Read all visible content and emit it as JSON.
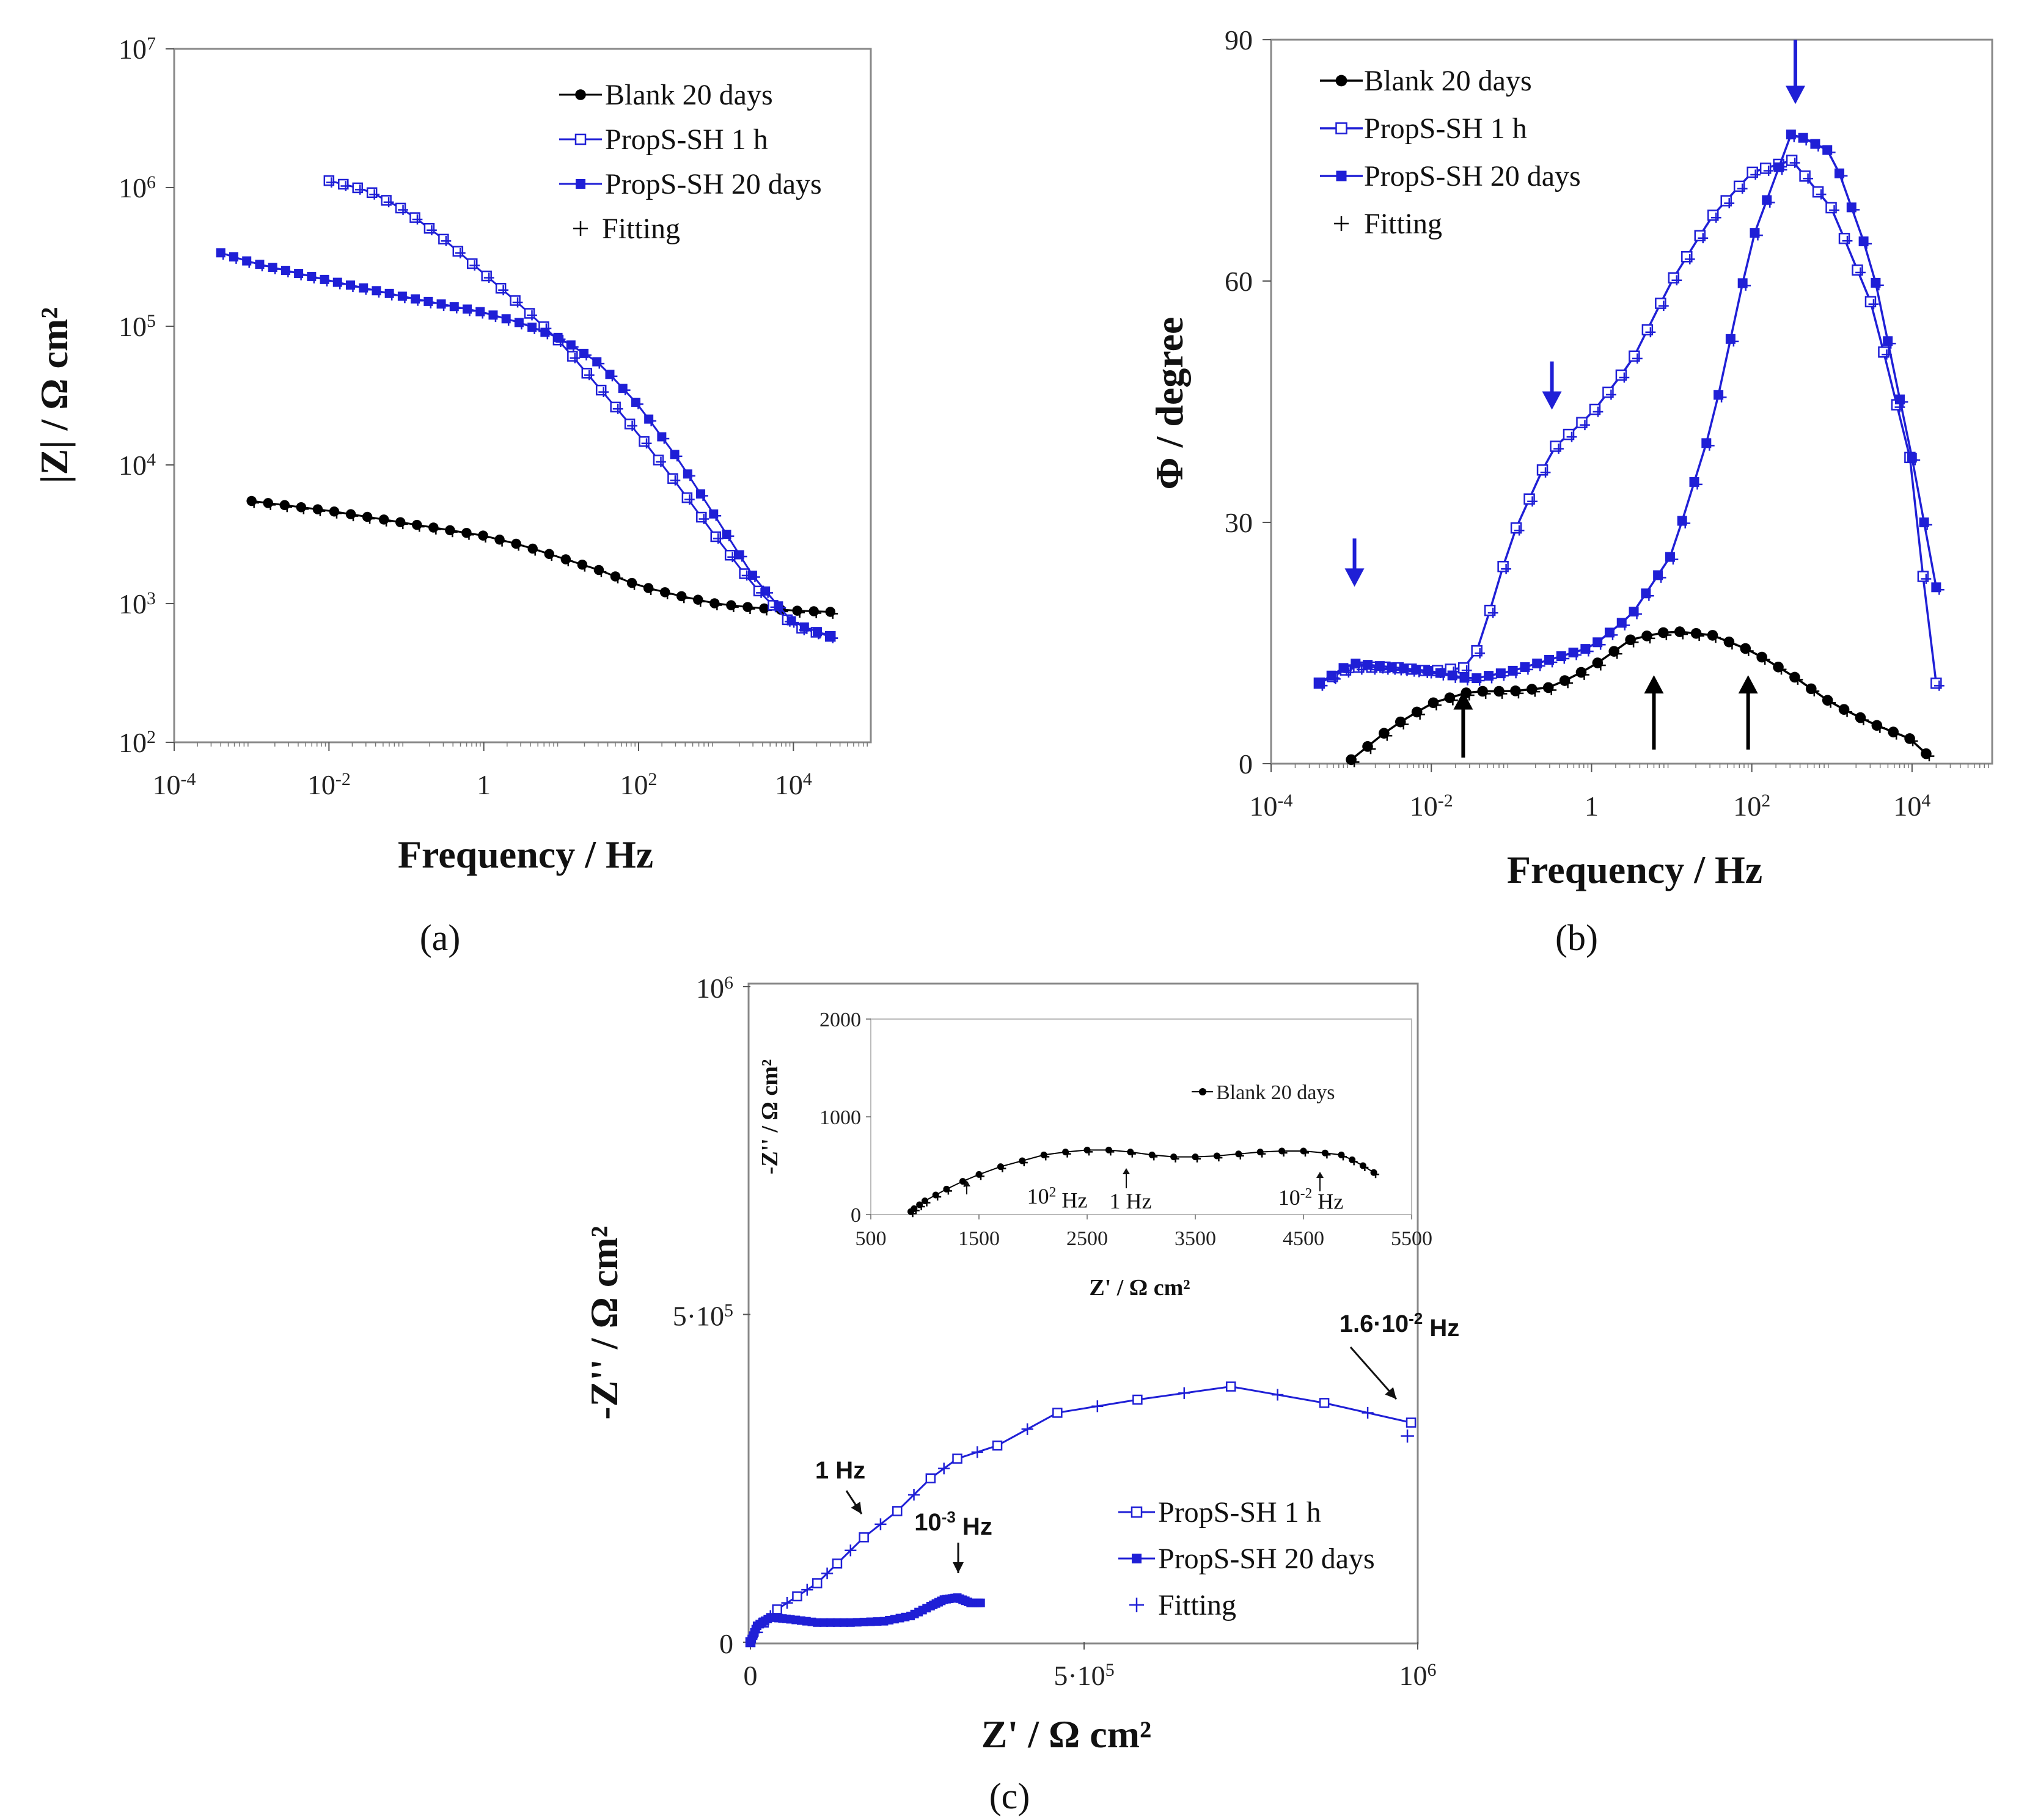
{
  "colors": {
    "blank": "#000000",
    "propsh": "#1f1fd6",
    "fit": "#1f1fd6",
    "arrow_blue": "#1f1fd6",
    "arrow_black": "#000000"
  },
  "chart_data": [
    {
      "id": "a",
      "type": "line",
      "panel_label": "(a)",
      "xlabel": "Frequency / Hz",
      "ylabel": "|Z| / Ω cm²",
      "xscale": "log",
      "yscale": "log",
      "xlim": [
        0.0001,
        100000
      ],
      "ylim": [
        100,
        10000000
      ],
      "x_ticks": [
        {
          "value": 0.0001,
          "base": "10",
          "exp": "-4"
        },
        {
          "value": 0.01,
          "base": "10",
          "exp": "-2"
        },
        {
          "value": 1,
          "base": "1",
          "exp": ""
        },
        {
          "value": 100,
          "base": "10",
          "exp": "2"
        },
        {
          "value": 10000,
          "base": "10",
          "exp": "4"
        }
      ],
      "y_ticks": [
        {
          "value": 100,
          "base": "10",
          "exp": "2"
        },
        {
          "value": 1000,
          "base": "10",
          "exp": "3"
        },
        {
          "value": 10000,
          "base": "10",
          "exp": "4"
        },
        {
          "value": 100000,
          "base": "10",
          "exp": "5"
        },
        {
          "value": 1000000,
          "base": "10",
          "exp": "6"
        },
        {
          "value": 10000000,
          "base": "10",
          "exp": "7"
        }
      ],
      "legend_position": "top-right",
      "legend": [
        {
          "label": "Blank 20 days",
          "marker": "filled-circle",
          "color": "#000000"
        },
        {
          "label": "PropS-SH 1 h",
          "marker": "open-square",
          "color": "#1f1fd6"
        },
        {
          "label": "PropS-SH 20 days",
          "marker": "filled-square",
          "color": "#1f1fd6"
        },
        {
          "label": "Fitting",
          "marker": "plus",
          "color": "#000000"
        }
      ],
      "series": [
        {
          "name": "Blank 20 days",
          "marker": "filled-circle",
          "color": "#000000",
          "n": 36,
          "x_range": [
            0.001,
            30000
          ],
          "points_log": [
            [
              -3,
              3.74
            ],
            [
              -2,
              3.67
            ],
            [
              -1,
              3.58
            ],
            [
              0,
              3.49
            ],
            [
              0.5,
              3.42
            ],
            [
              1,
              3.33
            ],
            [
              1.5,
              3.24
            ],
            [
              2,
              3.13
            ],
            [
              2.5,
              3.06
            ],
            [
              3,
              3.0
            ],
            [
              3.5,
              2.97
            ],
            [
              4,
              2.95
            ],
            [
              4.5,
              2.94
            ]
          ]
        },
        {
          "name": "PropS-SH 1 h",
          "marker": "open-square",
          "color": "#1f1fd6",
          "n": 36,
          "x_range": [
            0.01,
            30000
          ],
          "points_log": [
            [
              -2,
              6.05
            ],
            [
              -1.5,
              5.98
            ],
            [
              -1,
              5.83
            ],
            [
              -0.5,
              5.62
            ],
            [
              0,
              5.38
            ],
            [
              0.5,
              5.14
            ],
            [
              1,
              4.88
            ],
            [
              1.5,
              4.55
            ],
            [
              2,
              4.22
            ],
            [
              2.5,
              3.86
            ],
            [
              3,
              3.48
            ],
            [
              3.5,
              3.12
            ],
            [
              4,
              2.84
            ],
            [
              4.5,
              2.76
            ]
          ]
        },
        {
          "name": "PropS-SH 20 days",
          "marker": "filled-square",
          "color": "#1f1fd6",
          "n": 48,
          "x_range": [
            0.0004,
            30000
          ],
          "points_log": [
            [
              -3.4,
              5.53
            ],
            [
              -3,
              5.46
            ],
            [
              -2,
              5.33
            ],
            [
              -1,
              5.21
            ],
            [
              0,
              5.1
            ],
            [
              0.5,
              5.02
            ],
            [
              1,
              4.91
            ],
            [
              1.5,
              4.73
            ],
            [
              2,
              4.43
            ],
            [
              2.5,
              4.05
            ],
            [
              3,
              3.62
            ],
            [
              3.5,
              3.18
            ],
            [
              4,
              2.86
            ],
            [
              4.5,
              2.76
            ]
          ]
        },
        {
          "name": "Fitting",
          "marker": "plus",
          "color": "#1f1fd6",
          "applies_to": [
            "Blank 20 days",
            "PropS-SH 1 h",
            "PropS-SH 20 days"
          ]
        }
      ]
    },
    {
      "id": "b",
      "type": "line",
      "panel_label": "(b)",
      "xlabel": "Frequency / Hz",
      "ylabel": "Φ / degree",
      "xscale": "log",
      "yscale": "linear",
      "xlim": [
        0.0001,
        100000
      ],
      "ylim": [
        0,
        90
      ],
      "x_ticks": [
        {
          "value": 0.0001,
          "base": "10",
          "exp": "-4"
        },
        {
          "value": 0.01,
          "base": "10",
          "exp": "-2"
        },
        {
          "value": 1,
          "base": "1",
          "exp": ""
        },
        {
          "value": 100,
          "base": "10",
          "exp": "2"
        },
        {
          "value": 10000,
          "base": "10",
          "exp": "4"
        }
      ],
      "y_ticks": [
        0,
        30,
        60,
        90
      ],
      "legend_position": "top-left",
      "legend": [
        {
          "label": "Blank 20 days",
          "marker": "filled-circle",
          "color": "#000000"
        },
        {
          "label": "PropS-SH 1 h",
          "marker": "open-square",
          "color": "#1f1fd6"
        },
        {
          "label": "PropS-SH 20 days",
          "marker": "filled-square",
          "color": "#1f1fd6"
        },
        {
          "label": "Fitting",
          "marker": "plus",
          "color": "#000000"
        }
      ],
      "series": [
        {
          "name": "Blank 20 days",
          "marker": "filled-circle",
          "color": "#000000",
          "n": 36,
          "x_range": [
            0.001,
            15000
          ],
          "points_log": [
            [
              -3,
              0.5
            ],
            [
              -2.5,
              4.5
            ],
            [
              -2,
              7.5
            ],
            [
              -1.5,
              9
            ],
            [
              -1,
              9
            ],
            [
              -0.5,
              9.5
            ],
            [
              0,
              12
            ],
            [
              0.5,
              15.5
            ],
            [
              1,
              16.5
            ],
            [
              1.5,
              16
            ],
            [
              2,
              14
            ],
            [
              2.5,
              11
            ],
            [
              3,
              7.5
            ],
            [
              3.5,
              5
            ],
            [
              4,
              3
            ],
            [
              4.2,
              1
            ]
          ]
        },
        {
          "name": "PropS-SH 1 h",
          "marker": "open-square",
          "color": "#1f1fd6",
          "n": 48,
          "x_range": [
            0.0004,
            20000
          ],
          "points_log": [
            [
              -3.4,
              10
            ],
            [
              -3,
              12
            ],
            [
              -2.5,
              12
            ],
            [
              -2,
              11.5
            ],
            [
              -1.5,
              12
            ],
            [
              -1.3,
              18
            ],
            [
              -1,
              28
            ],
            [
              -0.5,
              39
            ],
            [
              0,
              43.5
            ],
            [
              0.5,
              50
            ],
            [
              1,
              60
            ],
            [
              1.5,
              68
            ],
            [
              2,
              73.5
            ],
            [
              2.5,
              75
            ],
            [
              3,
              69
            ],
            [
              3.5,
              57
            ],
            [
              4,
              37
            ],
            [
              4.2,
              17
            ],
            [
              4.3,
              10
            ]
          ]
        },
        {
          "name": "PropS-SH 20 days",
          "marker": "filled-square",
          "color": "#1f1fd6",
          "n": 52,
          "x_range": [
            0.0004,
            20000
          ],
          "points_log": [
            [
              -3.4,
              10
            ],
            [
              -3,
              12.5
            ],
            [
              -2,
              11.5
            ],
            [
              -1.5,
              10.5
            ],
            [
              -1,
              11.5
            ],
            [
              -0.5,
              13
            ],
            [
              0,
              14.5
            ],
            [
              0.5,
              18.5
            ],
            [
              1,
              26
            ],
            [
              1.5,
              42
            ],
            [
              2,
              65
            ],
            [
              2.5,
              78.5
            ],
            [
              3,
              76
            ],
            [
              3.5,
              62
            ],
            [
              4,
              38
            ],
            [
              4.3,
              22
            ],
            [
              4.4,
              15
            ]
          ]
        },
        {
          "name": "Fitting",
          "marker": "plus",
          "color": "#1f1fd6",
          "applies_to": [
            "Blank 20 days",
            "PropS-SH 1 h",
            "PropS-SH 20 days"
          ]
        }
      ],
      "arrows": [
        {
          "color": "blue",
          "x": 0.0011,
          "direction": "down"
        },
        {
          "color": "blue",
          "x": 0.32,
          "direction": "down"
        },
        {
          "color": "blue",
          "x": 350,
          "direction": "down"
        },
        {
          "color": "black",
          "x": 0.025,
          "direction": "up"
        },
        {
          "color": "black",
          "x": 6,
          "direction": "up"
        },
        {
          "color": "black",
          "x": 90,
          "direction": "up"
        }
      ]
    },
    {
      "id": "c",
      "type": "scatter",
      "panel_label": "(c)",
      "xlabel": "Z' / Ω cm²",
      "ylabel": "-Z'' / Ω cm²",
      "xlim": [
        0,
        1000000
      ],
      "ylim": [
        0,
        1000000
      ],
      "x_ticks": [
        {
          "value": 0,
          "label": "0"
        },
        {
          "value": 500000,
          "label": "5·10",
          "exp": "5"
        },
        {
          "value": 1000000,
          "label": "10",
          "exp": "6"
        }
      ],
      "y_ticks": [
        {
          "value": 0,
          "label": "0"
        },
        {
          "value": 500000,
          "label": "5·10",
          "exp": "5"
        },
        {
          "value": 1000000,
          "label": "10",
          "exp": "6"
        }
      ],
      "legend_position": "bottom-right",
      "legend": [
        {
          "label": "PropS-SH 1 h",
          "marker": "open-square",
          "color": "#1f1fd6"
        },
        {
          "label": "PropS-SH 20 days",
          "marker": "filled-square",
          "color": "#1f1fd6"
        },
        {
          "label": "Fitting",
          "marker": "plus",
          "color": "#1f1fd6"
        }
      ],
      "series": [
        {
          "name": "PropS-SH 1 h",
          "marker": "open-square",
          "color": "#1f1fd6",
          "x": [
            0,
            20000,
            40000,
            70000,
            100000,
            130000,
            170000,
            220000,
            270000,
            310000,
            370000,
            460000,
            580000,
            720000,
            860000,
            990000
          ],
          "y": [
            0,
            30000,
            50000,
            70000,
            90000,
            120000,
            160000,
            200000,
            250000,
            280000,
            300000,
            350000,
            370000,
            390000,
            365000,
            335000
          ]
        },
        {
          "name": "PropS-SH 20 days",
          "marker": "filled-square",
          "color": "#1f1fd6",
          "x": [
            0,
            10000,
            30000,
            60000,
            100000,
            150000,
            200000,
            240000,
            270000,
            290000,
            310000,
            330000,
            345000
          ],
          "y": [
            0,
            25000,
            38000,
            35000,
            30000,
            30000,
            32000,
            40000,
            55000,
            65000,
            68000,
            60000,
            60000
          ]
        },
        {
          "name": "Fitting",
          "marker": "plus",
          "color": "#1f1fd6"
        }
      ],
      "annotations": [
        {
          "text": "1 Hz",
          "x": 170000,
          "y": 170000
        },
        {
          "text": "10",
          "exp": "-3",
          "suffix": " Hz",
          "x": 300000,
          "y": 65000
        },
        {
          "text": "1.6·10",
          "exp": "-2",
          "suffix": " Hz",
          "x": 990000,
          "y": 335000
        }
      ],
      "inset": {
        "type": "scatter",
        "xlabel": "Z' / Ω cm²",
        "ylabel": "-Z'' / Ω cm²",
        "xlim": [
          500,
          5500
        ],
        "ylim": [
          0,
          2000
        ],
        "x_ticks": [
          500,
          1500,
          2500,
          3500,
          4500,
          5500
        ],
        "y_ticks": [
          0,
          1000,
          2000
        ],
        "legend": [
          {
            "label": "Blank 20 days",
            "marker": "filled-circle",
            "color": "#000000"
          }
        ],
        "series": [
          {
            "name": "Blank 20 days",
            "marker": "filled-circle",
            "color": "#000000",
            "x": [
              870,
              900,
              950,
              1000,
              1100,
              1200,
              1350,
              1500,
              1700,
              1900,
              2100,
              2300,
              2500,
              2700,
              2900,
              3100,
              3300,
              3500,
              3700,
              3900,
              4100,
              4300,
              4500,
              4700,
              4850,
              4950,
              5050,
              5150
            ],
            "y": [
              30,
              60,
              100,
              140,
              200,
              260,
              340,
              410,
              490,
              550,
              610,
              640,
              660,
              660,
              640,
              610,
              590,
              590,
              600,
              620,
              640,
              650,
              650,
              630,
              610,
              560,
              500,
              430
            ]
          }
        ],
        "annotations": [
          {
            "text": "10",
            "exp": "2",
            "suffix": " Hz",
            "x": 1350,
            "y": 340
          },
          {
            "text": "1 Hz",
            "x": 2950,
            "y": 630
          },
          {
            "text": "10",
            "exp": "-2",
            "suffix": " Hz",
            "x": 4800,
            "y": 610
          }
        ]
      }
    }
  ]
}
